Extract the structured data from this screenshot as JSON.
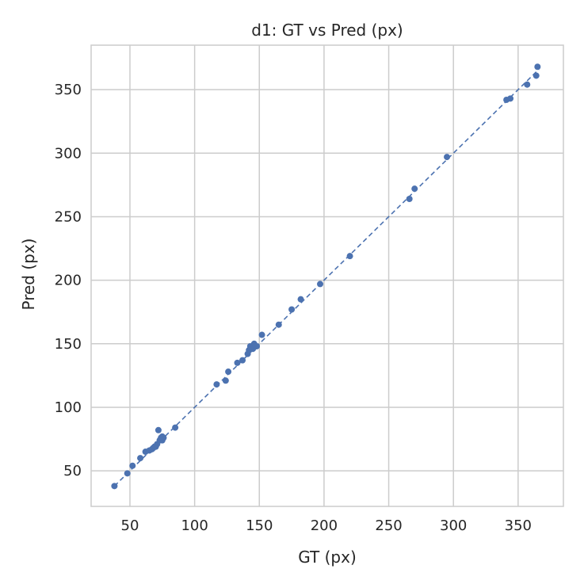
{
  "chart_data": {
    "type": "scatter",
    "title": "d1: GT vs Pred (px)",
    "xlabel": "GT (px)",
    "ylabel": "Pred (px)",
    "xlim": [
      20,
      385
    ],
    "ylim": [
      22,
      385
    ],
    "x_ticks": [
      50,
      100,
      150,
      200,
      250,
      300,
      350
    ],
    "y_ticks": [
      50,
      100,
      150,
      200,
      250,
      300,
      350
    ],
    "grid": true,
    "marker_color": "#4c72b0",
    "reference_line": {
      "x": [
        38,
        366
      ],
      "y": [
        38,
        366
      ],
      "style": "dashed",
      "color": "#4c72b0"
    },
    "points": [
      [
        38,
        38
      ],
      [
        48,
        48
      ],
      [
        52,
        54
      ],
      [
        58,
        60
      ],
      [
        62,
        65
      ],
      [
        65,
        66
      ],
      [
        67,
        67
      ],
      [
        68,
        68
      ],
      [
        69,
        69
      ],
      [
        70,
        69
      ],
      [
        71,
        71
      ],
      [
        72,
        82
      ],
      [
        73,
        74
      ],
      [
        74,
        76
      ],
      [
        75,
        77
      ],
      [
        75,
        74
      ],
      [
        76,
        76
      ],
      [
        85,
        84
      ],
      [
        117,
        118
      ],
      [
        124,
        121
      ],
      [
        126,
        128
      ],
      [
        133,
        135
      ],
      [
        137,
        137
      ],
      [
        141,
        142
      ],
      [
        142,
        145
      ],
      [
        143,
        148
      ],
      [
        145,
        146
      ],
      [
        146,
        150
      ],
      [
        147,
        148
      ],
      [
        148,
        148
      ],
      [
        152,
        157
      ],
      [
        165,
        165
      ],
      [
        175,
        177
      ],
      [
        182,
        185
      ],
      [
        197,
        197
      ],
      [
        220,
        219
      ],
      [
        266,
        264
      ],
      [
        270,
        272
      ],
      [
        295,
        297
      ],
      [
        341,
        342
      ],
      [
        344,
        343
      ],
      [
        357,
        354
      ],
      [
        364,
        361
      ],
      [
        365,
        368
      ]
    ]
  }
}
